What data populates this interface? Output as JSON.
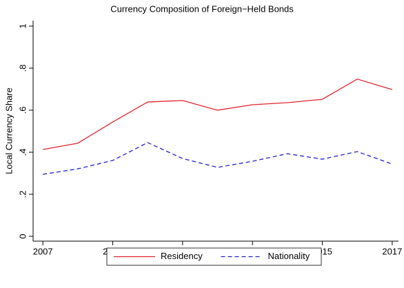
{
  "chart_data": {
    "type": "line",
    "title": "Currency Composition of Foreign−Held Bonds",
    "y_label": "Local Currency Share",
    "x": [
      2007,
      2008,
      2009,
      2010,
      2011,
      2012,
      2013,
      2014,
      2015,
      2016,
      2017
    ],
    "series": [
      {
        "name": "Residency",
        "color": "#e3242b",
        "style": "solid",
        "values": [
          0.413,
          0.443,
          0.544,
          0.639,
          0.646,
          0.6,
          0.626,
          0.636,
          0.652,
          0.748,
          0.698
        ]
      },
      {
        "name": "Nationality",
        "color": "#2020d0",
        "style": "dashed",
        "values": [
          0.295,
          0.321,
          0.361,
          0.446,
          0.37,
          0.328,
          0.357,
          0.393,
          0.367,
          0.403,
          0.344
        ]
      }
    ],
    "xlim": [
      2006.72,
      2017.18
    ],
    "xticks": [
      2007,
      2009,
      2011,
      2013,
      2015,
      2017
    ],
    "ylim": [
      -0.023,
      1.026
    ],
    "yticks": [
      0,
      {
        "value": 0.2,
        "label": ".2"
      },
      {
        "value": 0.4,
        "label": ".4"
      },
      {
        "value": 0.6,
        "label": ".6"
      },
      {
        "value": 0.8,
        "label": ".8"
      },
      1
    ],
    "grid": false,
    "legend": "bottom"
  }
}
